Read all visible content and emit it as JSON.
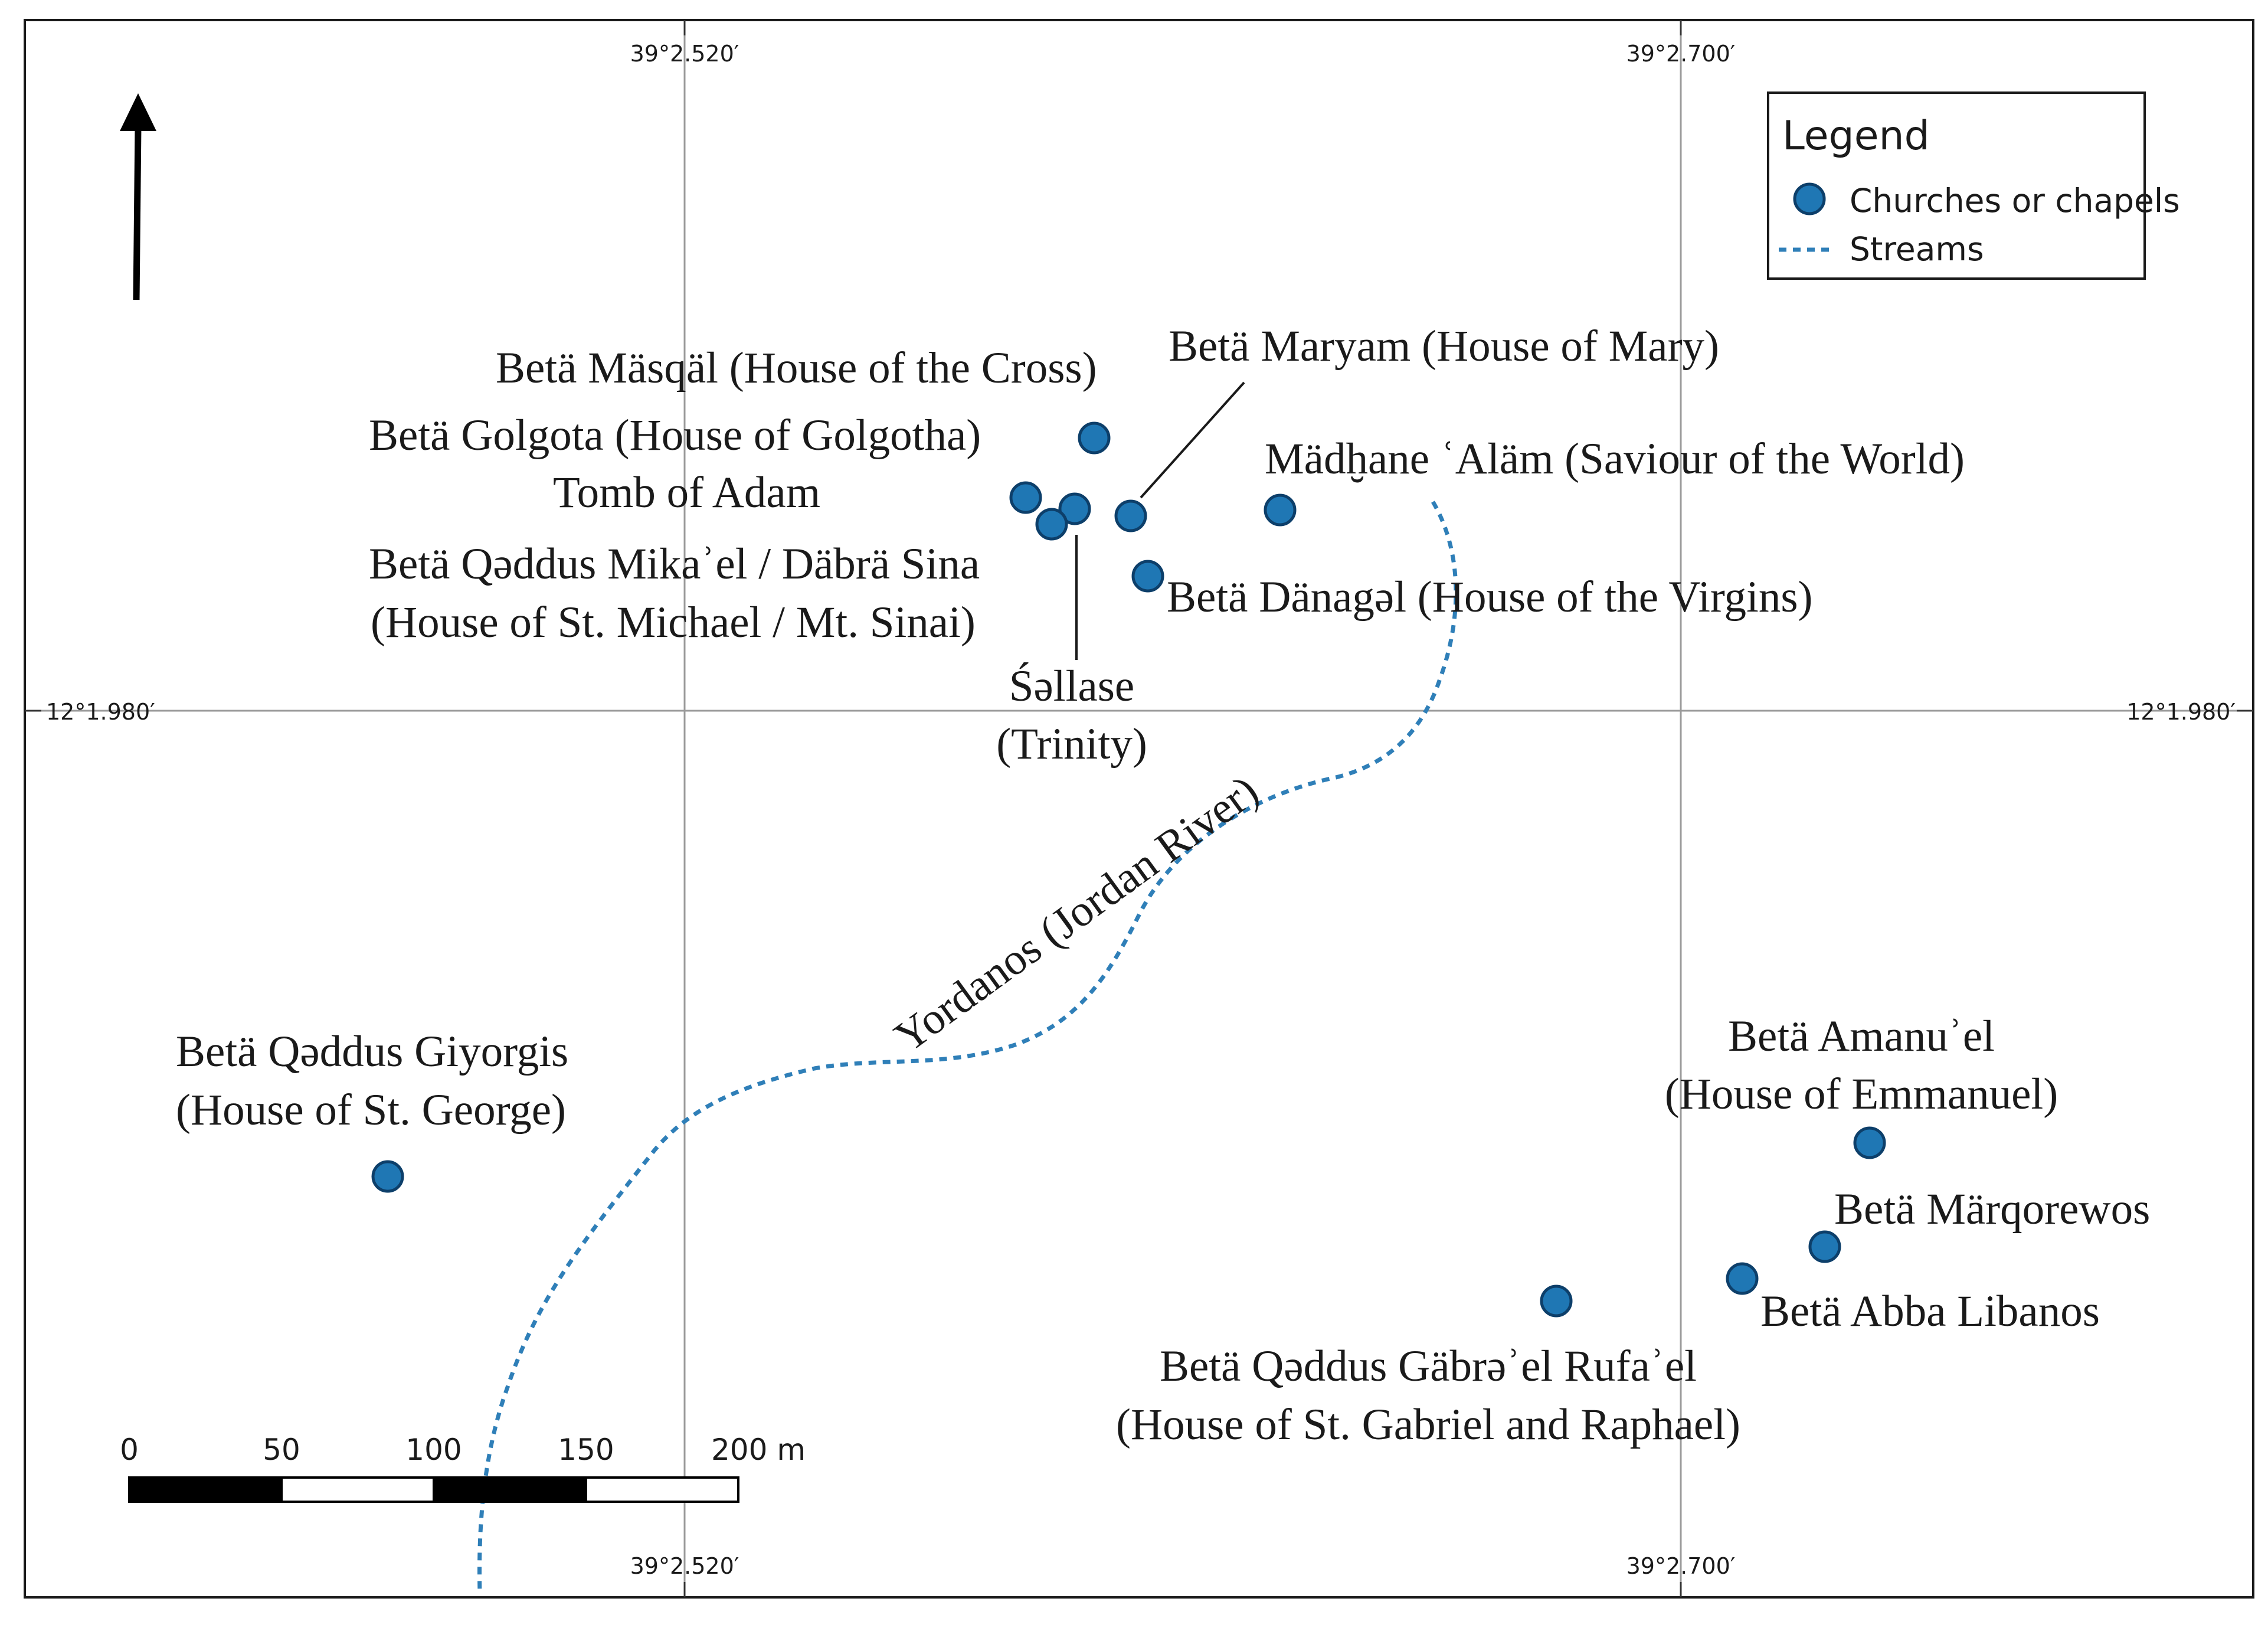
{
  "coordinates": {
    "lon_left": "39°2.520′",
    "lon_right": "39°2.700′",
    "lat": "12°1.980′"
  },
  "legend": {
    "title": "Legend",
    "items": [
      {
        "symbol": "church",
        "label": "Churches or chapels"
      },
      {
        "symbol": "stream",
        "label": "Streams"
      }
    ]
  },
  "colors": {
    "church_fill": "#1f77b4",
    "stream": "#2f7fb8",
    "frame": "#1a1a1a",
    "grid": "#9a9a9a"
  },
  "north_arrow": "north-arrow-icon",
  "scale_bar": {
    "labels": [
      "0",
      "50",
      "100",
      "150",
      "200 m"
    ]
  },
  "labels": {
    "masqal": "Betä Mäsqäl (House of the Cross)",
    "maryam": "Betä Maryam (House of Mary)",
    "golgota": "Betä Golgota (House of Golgotha)",
    "madhane": "Mädḫane ʿAläm (Saviour of the World)",
    "tomb": "Tomb of Adam",
    "mikael_1": "Betä Qəddus Mikaʾel / Däbrä Sina",
    "mikael_2": "(House of St. Michael / Mt. Sinai)",
    "danagal": "Betä Dänagəl (House of the Virgins)",
    "sellase_1": "Śəllase",
    "sellase_2": "(Trinity)",
    "river": "Yordanos (Jordan River)",
    "giyorgis_1": "Betä Qəddus Giyorgis",
    "giyorgis_2": "(House of St. George)",
    "amanuel_1": "Betä Amanuʾel",
    "amanuel_2": "(House of Emmanuel)",
    "marqorewos": "Betä Märqorewos",
    "libanos": "Betä Abba Libanos",
    "gabrel_1": "Betä Qəddus Gäbrəʾel Rufaʾel",
    "gabrel_2": "(House of St. Gabriel and Raphael)"
  }
}
